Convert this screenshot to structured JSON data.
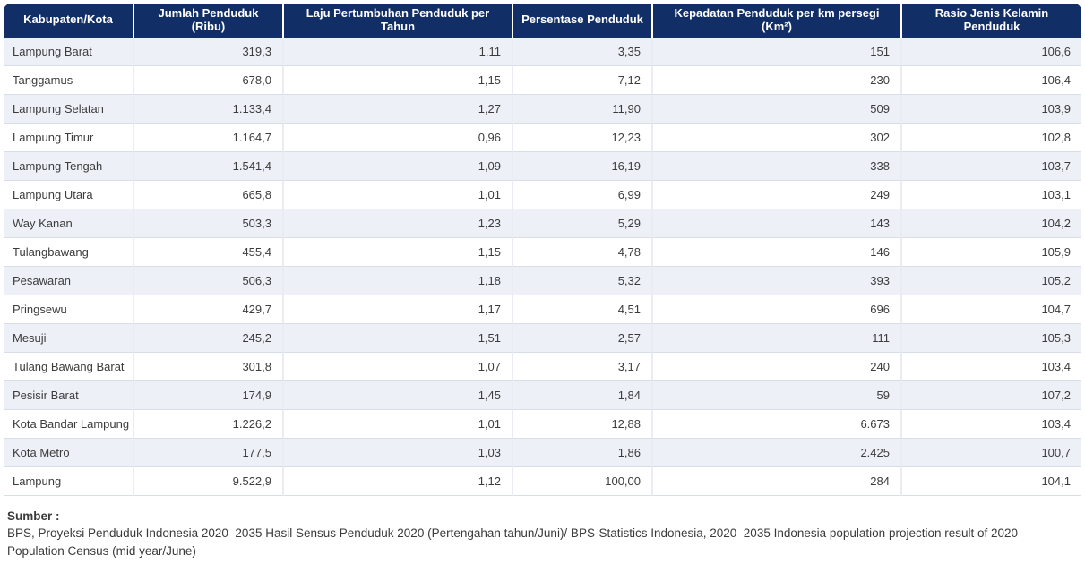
{
  "chart_data": {
    "type": "table",
    "title": "",
    "columns": [
      "Kabupaten/Kota",
      "Jumlah Penduduk (Ribu)",
      "Laju Pertumbuhan Penduduk per Tahun",
      "Persentase Penduduk",
      "Kepadatan Penduduk per km persegi (Km²)",
      "Rasio Jenis Kelamin Penduduk"
    ],
    "rows": [
      [
        "Lampung Barat",
        "319,3",
        "1,11",
        "3,35",
        "151",
        "106,6"
      ],
      [
        "Tanggamus",
        "678,0",
        "1,15",
        "7,12",
        "230",
        "106,4"
      ],
      [
        "Lampung Selatan",
        "1.133,4",
        "1,27",
        "11,90",
        "509",
        "103,9"
      ],
      [
        "Lampung Timur",
        "1.164,7",
        "0,96",
        "12,23",
        "302",
        "102,8"
      ],
      [
        "Lampung Tengah",
        "1.541,4",
        "1,09",
        "16,19",
        "338",
        "103,7"
      ],
      [
        "Lampung Utara",
        "665,8",
        "1,01",
        "6,99",
        "249",
        "103,1"
      ],
      [
        "Way Kanan",
        "503,3",
        "1,23",
        "5,29",
        "143",
        "104,2"
      ],
      [
        "Tulangbawang",
        "455,4",
        "1,15",
        "4,78",
        "146",
        "105,9"
      ],
      [
        "Pesawaran",
        "506,3",
        "1,18",
        "5,32",
        "393",
        "105,2"
      ],
      [
        "Pringsewu",
        "429,7",
        "1,17",
        "4,51",
        "696",
        "104,7"
      ],
      [
        "Mesuji",
        "245,2",
        "1,51",
        "2,57",
        "111",
        "105,3"
      ],
      [
        "Tulang Bawang Barat",
        "301,8",
        "1,07",
        "3,17",
        "240",
        "103,4"
      ],
      [
        "Pesisir Barat",
        "174,9",
        "1,45",
        "1,84",
        "59",
        "107,2"
      ],
      [
        "Kota Bandar Lampung",
        "1.226,2",
        "1,01",
        "12,88",
        "6.673",
        "103,4"
      ],
      [
        "Kota Metro",
        "177,5",
        "1,03",
        "1,86",
        "2.425",
        "100,7"
      ],
      [
        "Lampung",
        "9.522,9",
        "1,12",
        "100,00",
        "284",
        "104,1"
      ]
    ]
  },
  "footer": {
    "source_label": "Sumber :",
    "source_text": "BPS, Proyeksi Penduduk Indonesia 2020–2035 Hasil Sensus Penduduk 2020 (Pertengahan tahun/Juni)/ BPS-Statistics Indonesia, 2020–2035 Indonesia population projection result of 2020 Population Census (mid year/June)"
  },
  "colors": {
    "header_bg": "#112f66",
    "header_text": "#ffffff",
    "row_alt_bg": "#edf1f7",
    "row_bg": "#ffffff",
    "row_border": "#d8dde7",
    "cell_text": "#3c3c3c"
  }
}
